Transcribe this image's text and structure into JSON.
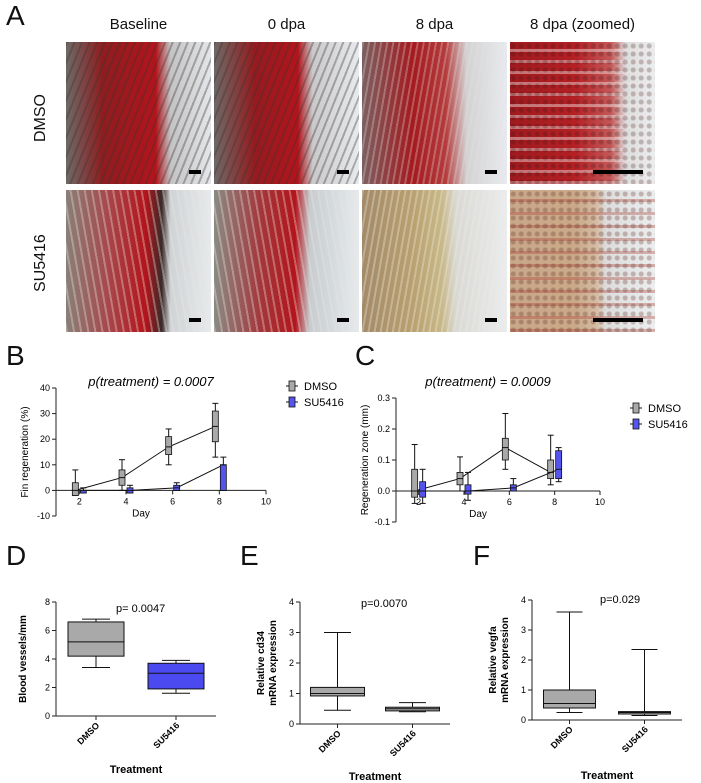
{
  "panel_a": {
    "letter": "A",
    "column_titles": [
      "Baseline",
      "0 dpa",
      "8 dpa",
      "8 dpa (zoomed)"
    ],
    "row_labels": [
      "DMSO",
      "SU5416"
    ]
  },
  "chart_data": [
    {
      "id": "B",
      "letter": "B",
      "type": "box",
      "annotation": "p(treatment) = 0.0007",
      "ylabel": "Fin regeneration (%)",
      "xlabel": "Day",
      "ylim": [
        -10,
        40
      ],
      "yticks": [
        "-10",
        "0",
        "10",
        "20",
        "30",
        "40"
      ],
      "xlim": [
        1,
        10
      ],
      "xticks": [
        "2",
        "4",
        "6",
        "8",
        "10"
      ],
      "legend_placement": "right",
      "series": [
        {
          "name": "DMSO",
          "color": "#a9a9a9",
          "x": [
            2,
            4,
            6,
            8
          ],
          "median": [
            0,
            5,
            17,
            25
          ],
          "q1": [
            -2,
            2,
            14,
            19
          ],
          "q3": [
            3,
            8,
            21,
            31
          ],
          "min": [
            -2,
            0,
            10,
            13
          ],
          "max": [
            8,
            12,
            24,
            34
          ]
        },
        {
          "name": "SU5416",
          "color": "#5555ee",
          "x": [
            2,
            4,
            6,
            8
          ],
          "median": [
            0,
            0,
            1,
            10
          ],
          "q1": [
            -1,
            -1,
            0,
            0
          ],
          "q3": [
            0,
            1,
            2,
            10
          ],
          "min": [
            -1,
            -1,
            0,
            0
          ],
          "max": [
            1,
            2,
            3,
            13
          ]
        }
      ]
    },
    {
      "id": "C",
      "letter": "C",
      "type": "box",
      "annotation": "p(treatment) = 0.0009",
      "ylabel": "Regeneration zone (mm)",
      "xlabel": "Day",
      "ylim": [
        -0.1,
        0.3
      ],
      "yticks": [
        "-0.1",
        "0.0",
        "0.1",
        "0.2",
        "0.3"
      ],
      "xlim": [
        1,
        10
      ],
      "xticks": [
        "2",
        "4",
        "6",
        "8",
        "10"
      ],
      "legend_placement": "right",
      "series": [
        {
          "name": "DMSO",
          "color": "#a9a9a9",
          "x": [
            2,
            4,
            6,
            8
          ],
          "median": [
            0.0,
            0.04,
            0.14,
            0.06
          ],
          "q1": [
            -0.02,
            0.02,
            0.1,
            0.04
          ],
          "q3": [
            0.07,
            0.06,
            0.17,
            0.1
          ],
          "min": [
            -0.04,
            0.0,
            0.07,
            0.02
          ],
          "max": [
            0.15,
            0.11,
            0.25,
            0.18
          ]
        },
        {
          "name": "SU5416",
          "color": "#5555ee",
          "x": [
            2,
            4,
            6,
            8
          ],
          "median": [
            0.0,
            0.0,
            0.01,
            0.07
          ],
          "q1": [
            -0.02,
            -0.01,
            0.0,
            0.04
          ],
          "q3": [
            0.03,
            0.02,
            0.02,
            0.13
          ],
          "min": [
            -0.04,
            -0.03,
            0.0,
            0.03
          ],
          "max": [
            0.07,
            0.06,
            0.04,
            0.14
          ]
        }
      ]
    },
    {
      "id": "D",
      "letter": "D",
      "type": "box",
      "annotation": "p= 0.0047",
      "ylabel": "Blood vessels/mm",
      "xlabel": "Treatment",
      "ylim": [
        0,
        8
      ],
      "yticks": [
        "0",
        "2",
        "4",
        "6",
        "8"
      ],
      "categories": [
        "DMSO",
        "SU5416"
      ],
      "boxes": [
        {
          "color": "#a9a9a9",
          "min": 3.4,
          "q1": 4.2,
          "median": 5.2,
          "q3": 6.6,
          "max": 6.8
        },
        {
          "color": "#4a4af0",
          "min": 1.6,
          "q1": 1.9,
          "median": 3.0,
          "q3": 3.7,
          "max": 3.9
        }
      ]
    },
    {
      "id": "E",
      "letter": "E",
      "type": "box",
      "annotation": "p=0.0070",
      "ylabel": "Relative cd34 mRNA expression",
      "ylabel_lines": [
        "Relative cd34",
        "mRNA expression"
      ],
      "xlabel": "Treatment",
      "ylim": [
        0,
        4
      ],
      "yticks": [
        "0",
        "1",
        "2",
        "3",
        "4"
      ],
      "categories": [
        "DMSO",
        "SU5416"
      ],
      "boxes": [
        {
          "color": "#a9a9a9",
          "min": 0.45,
          "q1": 0.92,
          "median": 1.0,
          "q3": 1.2,
          "max": 3.0
        },
        {
          "color": "#a9a9a9",
          "min": 0.4,
          "q1": 0.43,
          "median": 0.5,
          "q3": 0.55,
          "max": 0.7
        }
      ]
    },
    {
      "id": "F",
      "letter": "F",
      "type": "box",
      "annotation": "p=0.029",
      "ylabel": "Relative vegfa mRNA expression",
      "ylabel_lines": [
        "Relative vegfa",
        "mRNA expression"
      ],
      "xlabel": "Treatment",
      "ylim": [
        0,
        4
      ],
      "yticks": [
        "0",
        "1",
        "2",
        "3",
        "4"
      ],
      "categories": [
        "DMSO",
        "SU5416"
      ],
      "boxes": [
        {
          "color": "#a9a9a9",
          "min": 0.25,
          "q1": 0.4,
          "median": 0.55,
          "q3": 1.0,
          "max": 3.6
        },
        {
          "color": "#a9a9a9",
          "min": 0.15,
          "q1": 0.2,
          "median": 0.25,
          "q3": 0.28,
          "max": 2.35
        }
      ]
    }
  ]
}
